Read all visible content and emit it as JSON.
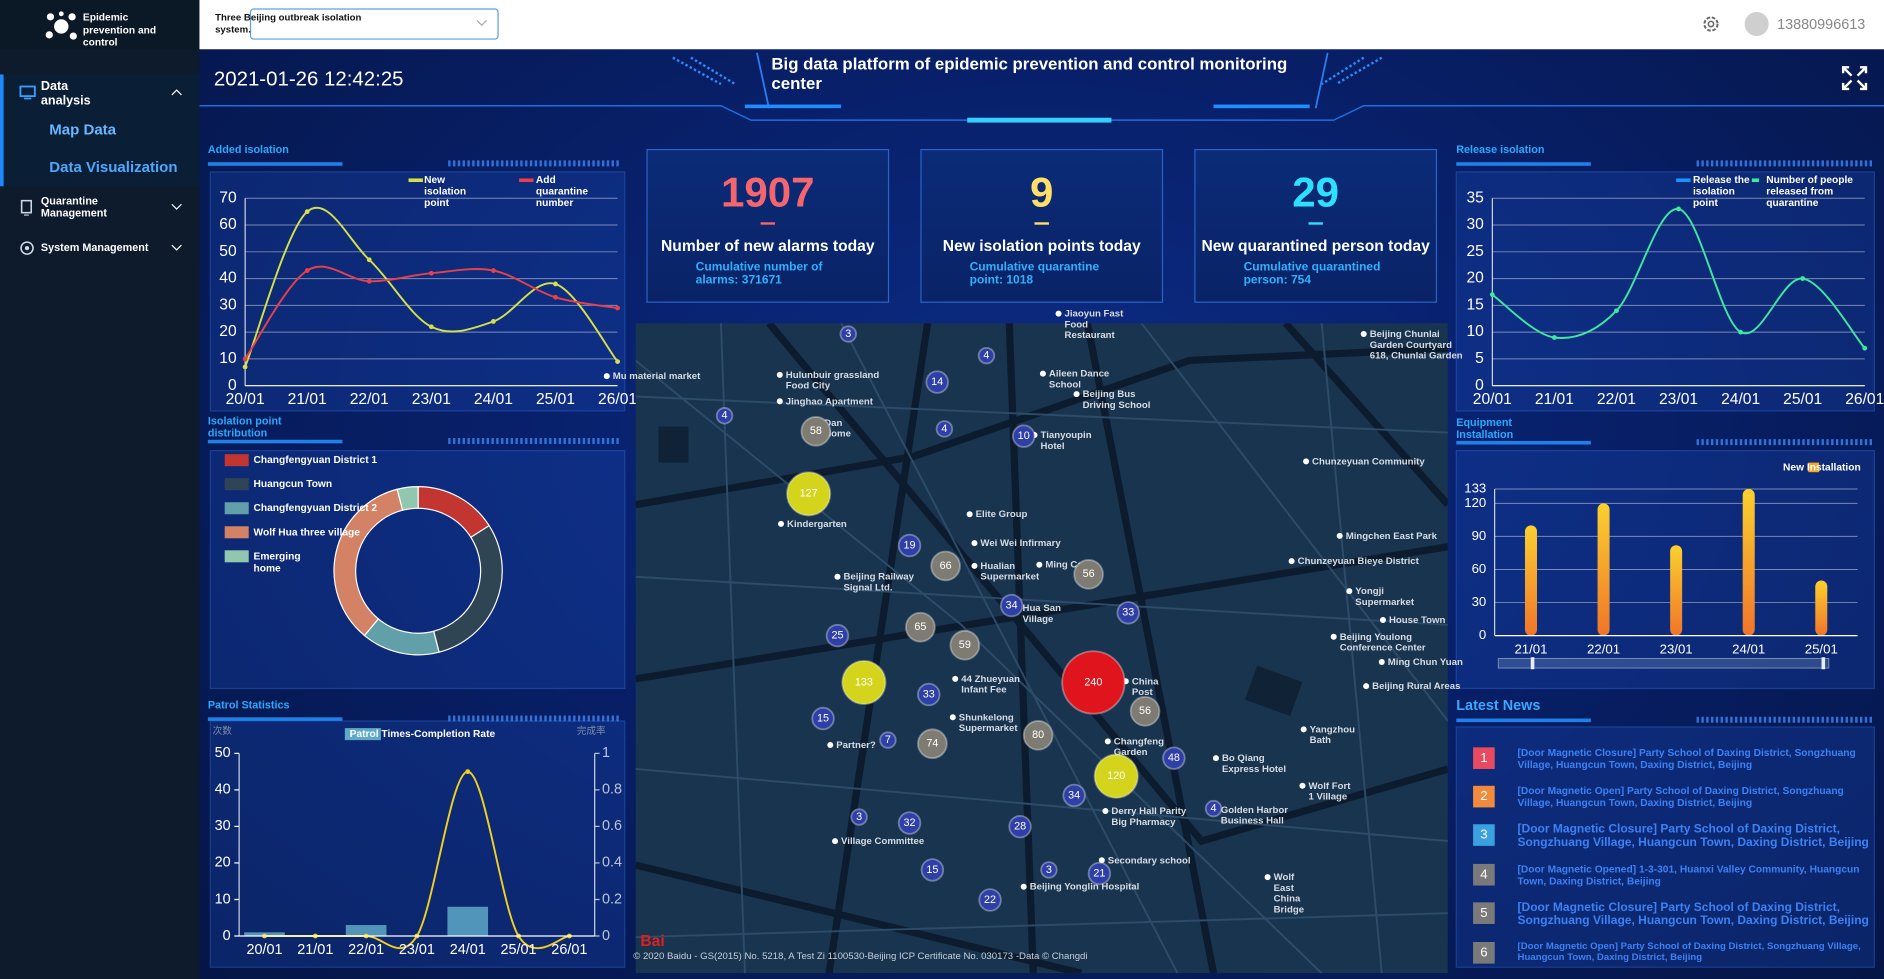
{
  "sidebar": {
    "logo": "Epidemic prevention and control",
    "menu": [
      {
        "label": "Data analysis",
        "children": [
          "Map Data",
          "Data Visualization"
        ]
      },
      {
        "label": "Quarantine Management"
      },
      {
        "label": "System Management"
      }
    ]
  },
  "topbar": {
    "system": "Three Beijing outbreak isolation system.",
    "user": "13880996613"
  },
  "header": {
    "datetime": "2021-01-26 12:42:25",
    "title": "Big data platform of epidemic prevention and control monitoring center"
  },
  "stats": [
    {
      "value": 1907,
      "label": "Number of new alarms today",
      "sub": "Cumulative number of alarms: 371671",
      "color": "#f4656d"
    },
    {
      "value": 9,
      "label": "New isolation points today",
      "sub": "Cumulative quarantine point: 1018",
      "color": "#ffe066"
    },
    {
      "value": 29,
      "label": "New quarantined person today",
      "sub": "Cumulative quarantined person: 754",
      "color": "#2de0ff"
    }
  ],
  "chart_data": [
    {
      "type": "line",
      "title": "Added isolation",
      "categories": [
        "20/01",
        "21/01",
        "22/01",
        "23/01",
        "24/01",
        "25/01",
        "26/01"
      ],
      "series": [
        {
          "name": "New isolation point",
          "color": "#d4e04a",
          "values": [
            7,
            65,
            47,
            22,
            24,
            38,
            9
          ]
        },
        {
          "name": "Add quarantine number",
          "color": "#e8404a",
          "values": [
            10,
            43,
            39,
            42,
            43,
            33,
            29
          ]
        }
      ],
      "ylim": [
        0,
        70
      ],
      "yticks": [
        0,
        10,
        20,
        30,
        40,
        50,
        60,
        70
      ],
      "grid": true
    },
    {
      "type": "pie",
      "title": "Isolation point distribution",
      "categories": [
        "Changfengyuan District 1",
        "Huangcun Town",
        "Changfengyuan District 2",
        "Wolf Hua three village",
        "Emerging home"
      ],
      "values": [
        16,
        30,
        15,
        35,
        4
      ],
      "colors": [
        "#c23531",
        "#2f4554",
        "#61a0a8",
        "#d48265",
        "#91c7ae"
      ]
    },
    {
      "type": "combo",
      "title": "Patrol Statistics",
      "categories": [
        "20/01",
        "21/01",
        "22/01",
        "23/01",
        "24/01",
        "25/01",
        "26/01"
      ],
      "y_label": "次数",
      "y2_label": "完成率",
      "series": [
        {
          "name": "Patrol Times-Completion Rate",
          "type": "bar",
          "color": "#5fa8c8",
          "values": [
            1,
            0,
            3,
            0,
            8,
            0,
            0
          ]
        },
        {
          "type": "line",
          "axis": "y2",
          "color": "#f0d020",
          "values": [
            0,
            0,
            0,
            0,
            0.9,
            0,
            0
          ]
        }
      ],
      "ylim": [
        0,
        50
      ],
      "yticks": [
        0,
        10,
        20,
        30,
        40,
        50
      ],
      "y2lim": [
        0,
        1
      ],
      "y2ticks": [
        0,
        0.2,
        0.4,
        0.6,
        0.8,
        1
      ],
      "grid": false
    },
    {
      "type": "line",
      "title": "Release isolation",
      "categories": [
        "20/01",
        "21/01",
        "22/01",
        "23/01",
        "24/01",
        "25/01",
        "26/01"
      ],
      "series": [
        {
          "name": "Release the isolation point",
          "color": "#1e90ff",
          "values": [
            null,
            null,
            null,
            null,
            null,
            null,
            null
          ]
        },
        {
          "name": "Number of people released from quarantine",
          "color": "#3de8a0",
          "values": [
            17,
            9,
            14,
            33,
            10,
            20,
            7
          ]
        }
      ],
      "ylim": [
        0,
        35
      ],
      "yticks": [
        0,
        5,
        10,
        15,
        20,
        25,
        30,
        35
      ],
      "grid": true
    },
    {
      "type": "bar",
      "title": "Equipment Installation",
      "categories": [
        "21/01",
        "22/01",
        "23/01",
        "24/01",
        "25/01"
      ],
      "series": [
        {
          "name": "New Installation",
          "color": "#f5a623",
          "values": [
            100,
            120,
            82,
            133,
            50
          ]
        }
      ],
      "ylim": [
        0,
        133
      ],
      "yticks": [
        0,
        30,
        60,
        90,
        120,
        133
      ],
      "grid": true
    }
  ],
  "map": {
    "clusters": [
      3,
      4,
      14,
      4,
      58,
      10,
      4,
      127,
      19,
      66,
      56,
      34,
      33,
      65,
      25,
      59,
      133,
      33,
      240,
      56,
      15,
      7,
      74,
      80,
      48,
      120,
      34,
      3,
      32,
      28,
      15,
      3,
      21,
      22,
      4
    ],
    "places": [
      "Jiaoyun Fast Food Restaurant",
      "Hulunbuir grassland Food City",
      "Jinghao Apartment",
      "Dan Home",
      "Aileen Dance School",
      "Beijing Bus Driving School",
      "Tianyoupin Hotel",
      "Beijing Chunlai Garden Courtyard 618, Chunlai Garden",
      "Chunzeyuan Community",
      "Mu material market",
      "Kindergarten",
      "Elite Group",
      "Wei Wei Infirmary",
      "Hualian Supermarket",
      "Ming Cell",
      "Beijing Railway Signal Ltd.",
      "Hua San Village",
      "Mingchen East Park",
      "Chunzeyuan Bieye District",
      "Yongji Supermarket",
      "House Town",
      "Beijing Youlong Conference Center",
      "Ming Chun Yuan",
      "Beijing Rural Areas",
      "44 Zhueyuan Infant Fee",
      "China Post",
      "Shunkelong Supermarket",
      "Partner?",
      "Changfeng Garden",
      "Bo Qiang Express Hotel",
      "Yangzhou Bath",
      "Village Committee",
      "Derry Hall Parity Big Pharmacy",
      "Golden Harbor Business Hall",
      "Wolf Fort 1 Village",
      "Secondary school",
      "Beijing Yonglin Hospital",
      "Wolf East China Bridge"
    ],
    "logo": "Bai",
    "copyright": "© 2020 Baidu - GS(2015) No. 5218, A Test Zi 1100530-Beijing ICP Certificate No. 030173 -Data © Changdi"
  },
  "news": {
    "title": "Latest News",
    "items": [
      {
        "no": 1,
        "text": "[Door Magnetic Closure] Party School of Daxing District, Songzhuang Village, Huangcun Town, Daxing District, Beijing"
      },
      {
        "no": 2,
        "text": "[Door Magnetic Open] Party School of Daxing District, Songzhuang Village, Huangcun Town, Daxing District, Beijing"
      },
      {
        "no": 3,
        "text": "[Door Magnetic Closure] Party School of Daxing District, Songzhuang Village, Huangcun Town, Daxing District, Beijing"
      },
      {
        "no": 4,
        "text": "[Door Magnetic Opened] 1-3-301, Huanxi Valley Community, Huangcun Town, Daxing District, Beijing"
      },
      {
        "no": 5,
        "text": "[Door Magnetic Closure] Party School of Daxing District, Songzhuang Village, Huangcun Town, Daxing District, Beijing"
      },
      {
        "no": 6,
        "text": "[Door Magnetic Open] Party School of Daxing District, Songzhuang Village, Huangcun Town, Daxing District, Beijing"
      }
    ]
  }
}
